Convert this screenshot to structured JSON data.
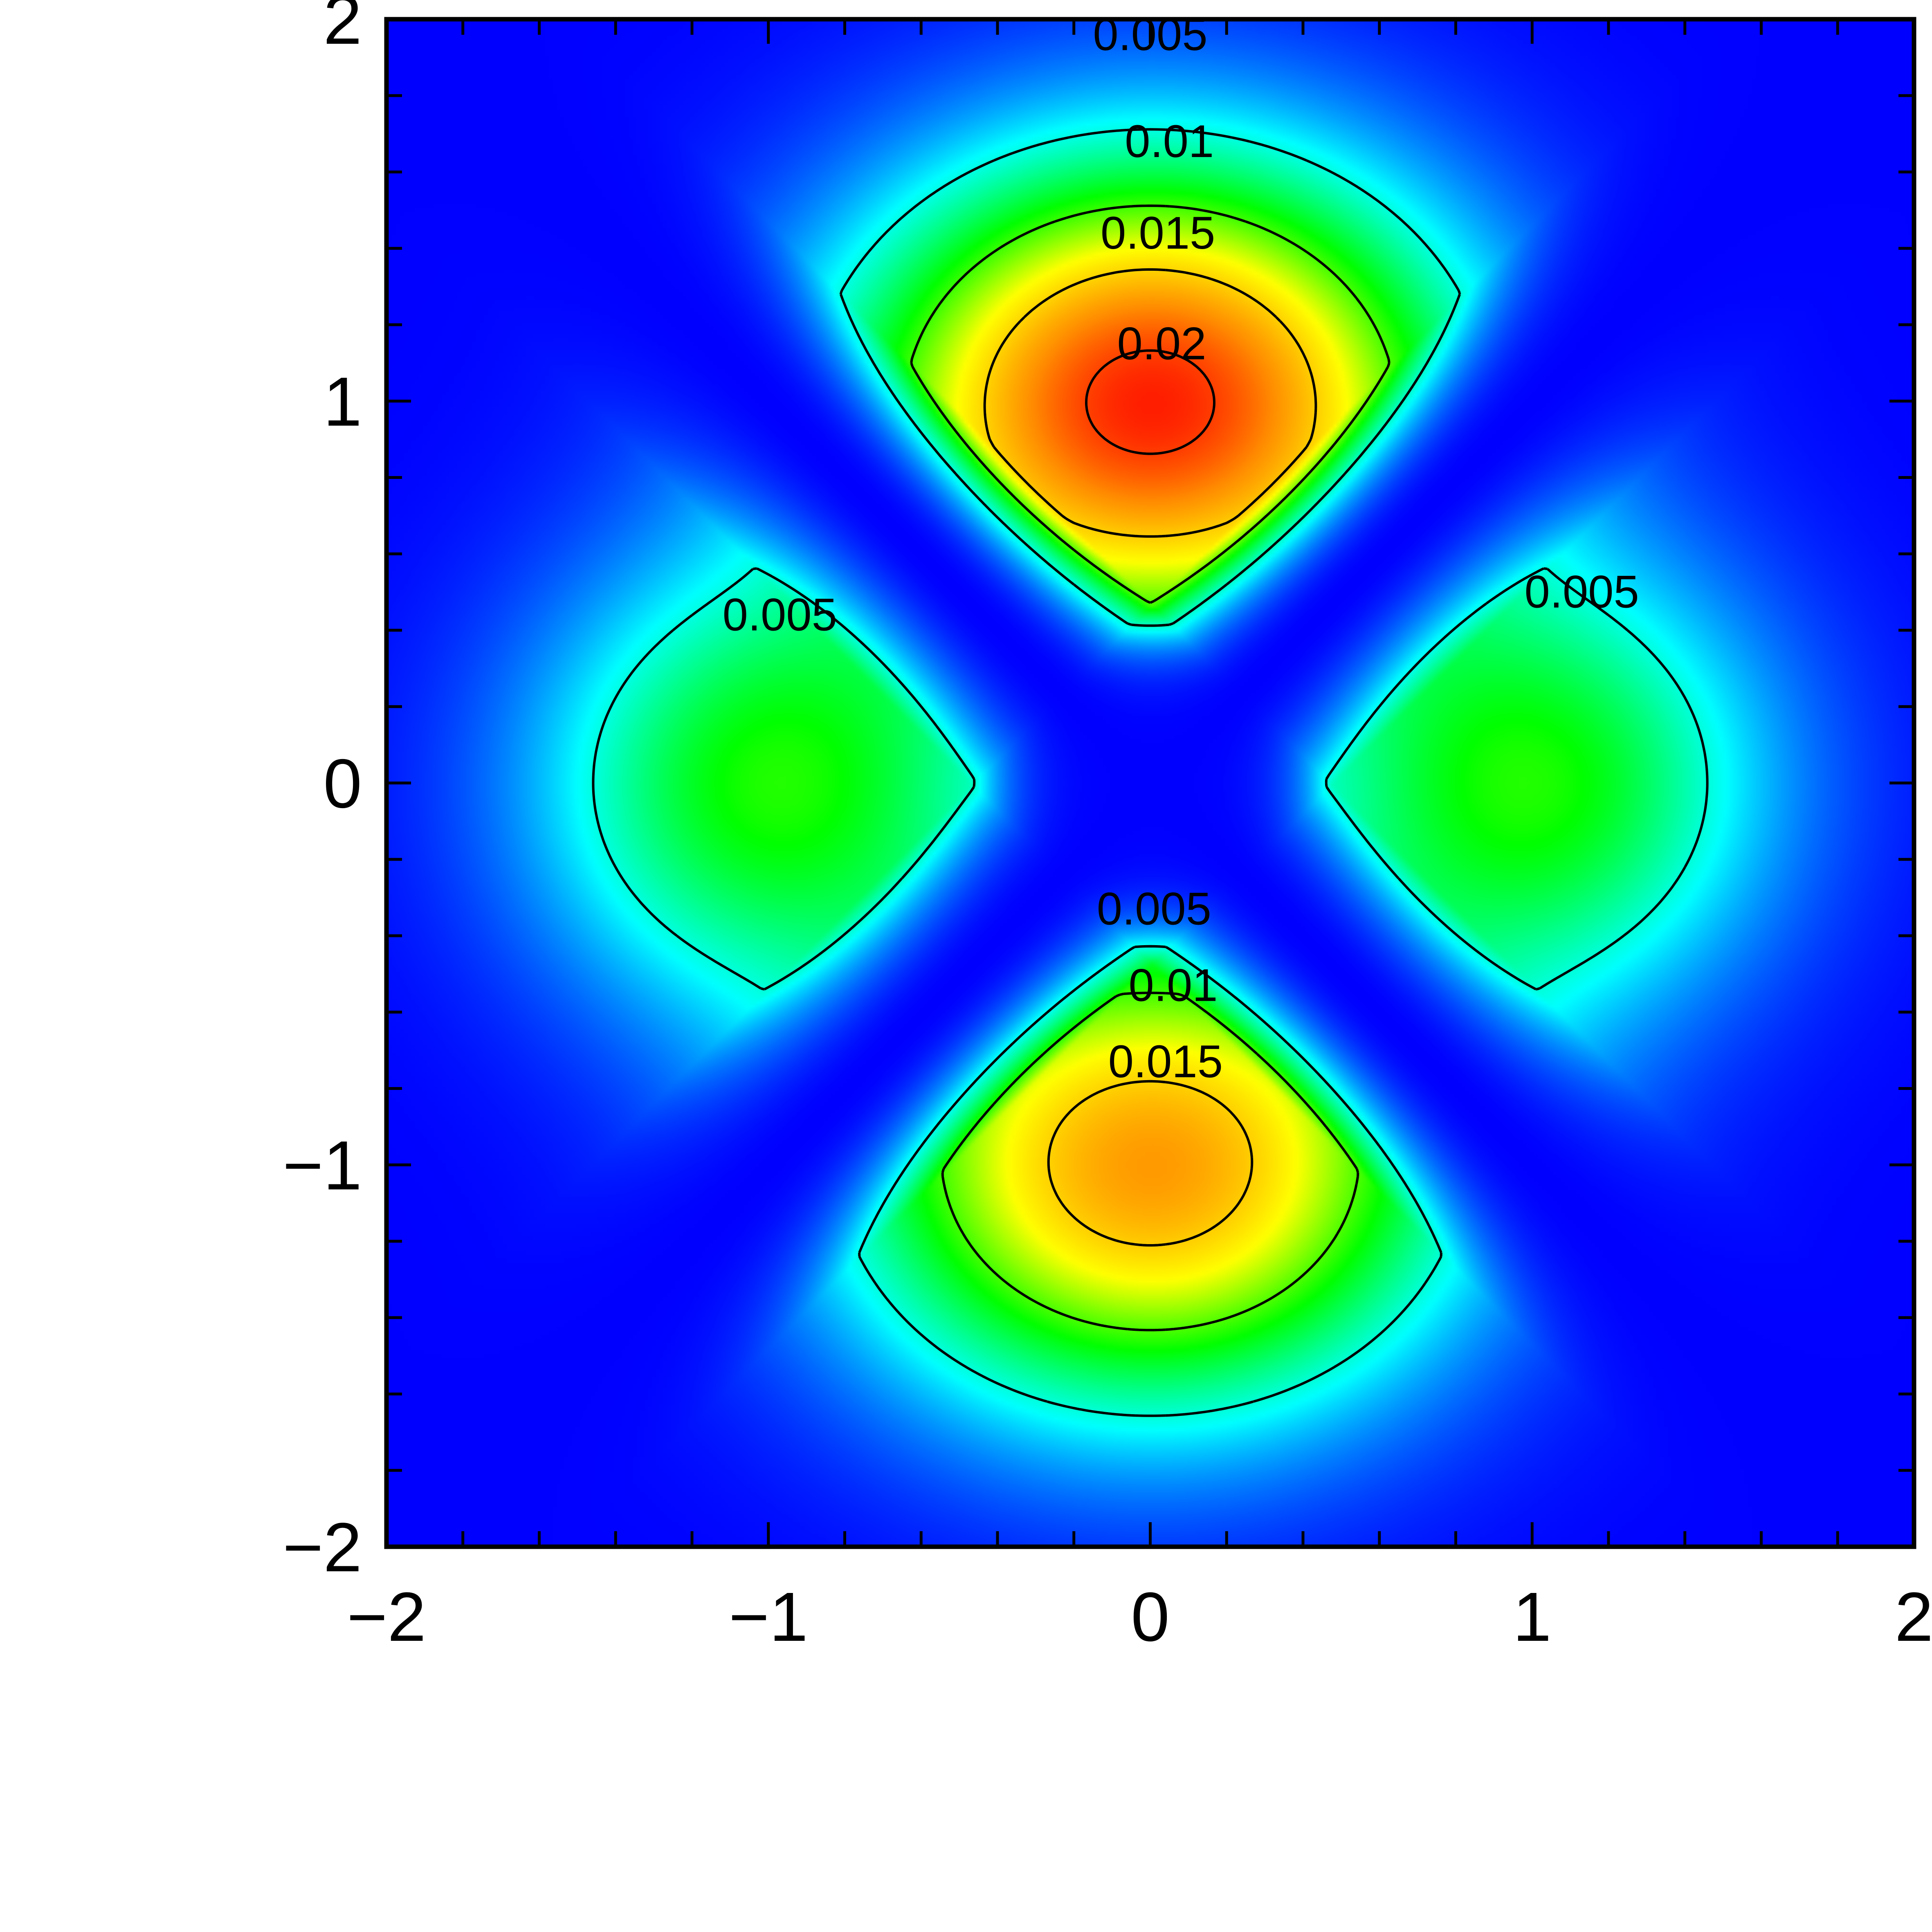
{
  "chart_data": {
    "type": "heatmap",
    "title": "",
    "xlabel": "",
    "ylabel": "",
    "xlim": [
      -2,
      2
    ],
    "ylim": [
      -2,
      2
    ],
    "x_ticks": [
      {
        "value": -2,
        "label": "−2"
      },
      {
        "value": -1,
        "label": "−1"
      },
      {
        "value": 0,
        "label": "0"
      },
      {
        "value": 1,
        "label": "1"
      },
      {
        "value": 2,
        "label": "2"
      }
    ],
    "y_ticks": [
      {
        "value": -2,
        "label": "−2"
      },
      {
        "value": -1,
        "label": "−1"
      },
      {
        "value": 0,
        "label": "0"
      },
      {
        "value": 1,
        "label": "1"
      },
      {
        "value": 2,
        "label": "2"
      }
    ],
    "minor_tick_step": 0.2,
    "colormap": [
      "#0000ff",
      "#00ffff",
      "#00ff00",
      "#ffff00",
      "#ff8c00",
      "#ff0000"
    ],
    "color_range": [
      0,
      0.022
    ],
    "peaks": [
      {
        "x": 0,
        "y": 1.0,
        "value": 0.021
      },
      {
        "x": 0,
        "y": -1.0,
        "value": 0.017
      },
      {
        "x": -1.0,
        "y": 0,
        "value": 0.009
      },
      {
        "x": 1.0,
        "y": 0,
        "value": 0.009
      }
    ],
    "zero_lines": [
      "y = x",
      "y = -x"
    ],
    "contour_levels": [
      0.005,
      0.01,
      0.015,
      0.02
    ],
    "contour_labels": [
      {
        "text": "0.005",
        "x": 0.0,
        "y": 1.96
      },
      {
        "text": "0.01",
        "x": 0.05,
        "y": 1.68
      },
      {
        "text": "0.015",
        "x": 0.02,
        "y": 1.44
      },
      {
        "text": "0.02",
        "x": 0.03,
        "y": 1.15
      },
      {
        "text": "0.005",
        "x": -0.97,
        "y": 0.44
      },
      {
        "text": "0.005",
        "x": 1.13,
        "y": 0.5
      },
      {
        "text": "0.005",
        "x": 0.01,
        "y": -0.33
      },
      {
        "text": "0.01",
        "x": 0.06,
        "y": -0.53
      },
      {
        "text": "0.015",
        "x": 0.04,
        "y": -0.73
      }
    ],
    "grid": false,
    "legend": "none"
  }
}
